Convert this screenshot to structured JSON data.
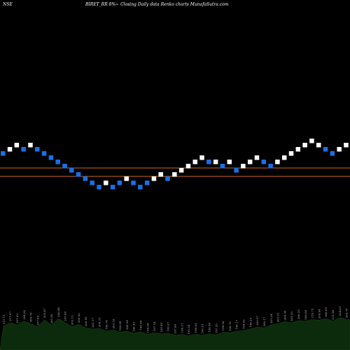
{
  "chart_data": {
    "type": "renko",
    "exchange": "NSE",
    "title": "BIRET_RR 8%~ Closing Daily data  Renko  charts MunafaSutra.com",
    "colors": {
      "background": "#000000",
      "up_brick": "#ffffff",
      "down_brick": "#1a6fe8",
      "ref_line": "#d2691e",
      "volume": "#0c2a0c"
    },
    "reference_lines": [
      {
        "level": 240
      },
      {
        "level": 252
      }
    ],
    "bricks": [
      {
        "dir": "down",
        "level": 219
      },
      {
        "dir": "up",
        "level": 213
      },
      {
        "dir": "up",
        "level": 207
      },
      {
        "dir": "down",
        "level": 213
      },
      {
        "dir": "up",
        "level": 207
      },
      {
        "dir": "down",
        "level": 213
      },
      {
        "dir": "down",
        "level": 219
      },
      {
        "dir": "down",
        "level": 225
      },
      {
        "dir": "down",
        "level": 231
      },
      {
        "dir": "down",
        "level": 237
      },
      {
        "dir": "down",
        "level": 243
      },
      {
        "dir": "down",
        "level": 249
      },
      {
        "dir": "down",
        "level": 255
      },
      {
        "dir": "down",
        "level": 261
      },
      {
        "dir": "down",
        "level": 267
      },
      {
        "dir": "up",
        "level": 261
      },
      {
        "dir": "down",
        "level": 267
      },
      {
        "dir": "down",
        "level": 261
      },
      {
        "dir": "up",
        "level": 255
      },
      {
        "dir": "down",
        "level": 261
      },
      {
        "dir": "down",
        "level": 267
      },
      {
        "dir": "down",
        "level": 261
      },
      {
        "dir": "up",
        "level": 255
      },
      {
        "dir": "up",
        "level": 249
      },
      {
        "dir": "down",
        "level": 255
      },
      {
        "dir": "up",
        "level": 249
      },
      {
        "dir": "up",
        "level": 243
      },
      {
        "dir": "up",
        "level": 237
      },
      {
        "dir": "up",
        "level": 231
      },
      {
        "dir": "up",
        "level": 225
      },
      {
        "dir": "down",
        "level": 231
      },
      {
        "dir": "up",
        "level": 231
      },
      {
        "dir": "down",
        "level": 237
      },
      {
        "dir": "up",
        "level": 231
      },
      {
        "dir": "down",
        "level": 243
      },
      {
        "dir": "up",
        "level": 237
      },
      {
        "dir": "up",
        "level": 231
      },
      {
        "dir": "up",
        "level": 225
      },
      {
        "dir": "down",
        "level": 231
      },
      {
        "dir": "down",
        "level": 237
      },
      {
        "dir": "up",
        "level": 231
      },
      {
        "dir": "up",
        "level": 225
      },
      {
        "dir": "up",
        "level": 219
      },
      {
        "dir": "up",
        "level": 213
      },
      {
        "dir": "up",
        "level": 207
      },
      {
        "dir": "up",
        "level": 201
      },
      {
        "dir": "up",
        "level": 207
      },
      {
        "dir": "down",
        "level": 213
      },
      {
        "dir": "down",
        "level": 219
      },
      {
        "dir": "up",
        "level": 213
      },
      {
        "dir": "up",
        "level": 207
      }
    ],
    "volume": [
      46,
      52,
      48,
      55,
      50,
      44,
      58,
      47,
      60,
      52,
      45,
      49,
      42,
      40,
      41,
      36,
      38,
      34,
      36,
      32,
      35,
      30,
      33,
      31,
      32,
      28,
      30,
      27,
      30,
      28,
      31,
      29,
      34,
      33,
      36,
      37,
      40,
      44,
      42,
      48,
      50,
      54,
      52,
      56,
      55,
      58,
      57,
      60,
      55,
      62,
      58
    ],
    "price_labels": [
      "212.12",
      "211.97",
      "201.82",
      "204.82",
      "209.78",
      "207.09",
      "205.47",
      "205.50",
      "206.46",
      "205.98",
      "203.11",
      "200.93",
      "200.45",
      "201.17",
      "200.31",
      "199.76",
      "203.53",
      "198.95",
      "200.58",
      "196.99",
      "198.89",
      "196.69",
      "197.14",
      "195.45",
      "199.27",
      "197.66",
      "196.17",
      "195.54",
      "196.83",
      "196.35",
      "198.46",
      "197.55",
      "199.56",
      "198.78",
      "198.17",
      "199.62",
      "198.35",
      "203.07",
      "200.17",
      "201.34",
      "202.91",
      "204.30",
      "205.53",
      "206.55",
      "208.89",
      "210.73",
      "209.64",
      "206.65",
      "211.98",
      "204.61",
      "209.70"
    ]
  }
}
